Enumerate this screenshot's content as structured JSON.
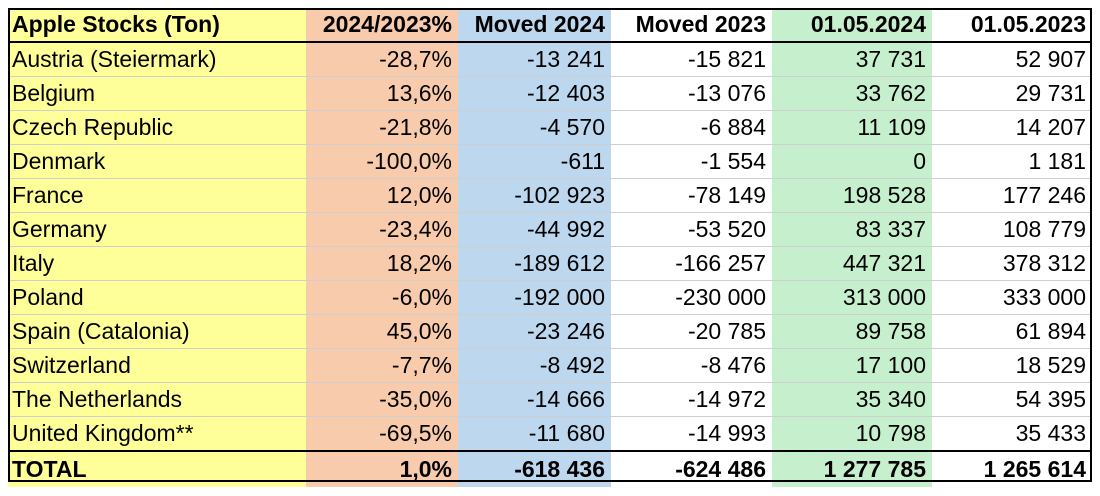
{
  "table": {
    "headers": [
      "Apple Stocks (Ton)",
      "2024/2023%",
      "Moved 2024",
      "Moved 2023",
      "01.05.2024",
      "01.05.2023"
    ],
    "rows": [
      {
        "country": "Austria (Steiermark)",
        "ratio": "-28,7%",
        "moved2024": "-13 241",
        "moved2023": "-15 821",
        "stock2024": "37 731",
        "stock2023": "52 907"
      },
      {
        "country": "Belgium",
        "ratio": "13,6%",
        "moved2024": "-12 403",
        "moved2023": "-13 076",
        "stock2024": "33 762",
        "stock2023": "29 731"
      },
      {
        "country": "Czech Republic",
        "ratio": "-21,8%",
        "moved2024": "-4 570",
        "moved2023": "-6 884",
        "stock2024": "11 109",
        "stock2023": "14 207"
      },
      {
        "country": "Denmark",
        "ratio": "-100,0%",
        "moved2024": "-611",
        "moved2023": "-1 554",
        "stock2024": "0",
        "stock2023": "1 181"
      },
      {
        "country": "France",
        "ratio": "12,0%",
        "moved2024": "-102 923",
        "moved2023": "-78 149",
        "stock2024": "198 528",
        "stock2023": "177 246"
      },
      {
        "country": "Germany",
        "ratio": "-23,4%",
        "moved2024": "-44 992",
        "moved2023": "-53 520",
        "stock2024": "83 337",
        "stock2023": "108 779"
      },
      {
        "country": "Italy",
        "ratio": "18,2%",
        "moved2024": "-189 612",
        "moved2023": "-166 257",
        "stock2024": "447 321",
        "stock2023": "378 312"
      },
      {
        "country": "Poland",
        "ratio": "-6,0%",
        "moved2024": "-192 000",
        "moved2023": "-230 000",
        "stock2024": "313 000",
        "stock2023": "333 000"
      },
      {
        "country": "Spain (Catalonia)",
        "ratio": "45,0%",
        "moved2024": "-23 246",
        "moved2023": "-20 785",
        "stock2024": "89 758",
        "stock2023": "61 894"
      },
      {
        "country": "Switzerland",
        "ratio": "-7,7%",
        "moved2024": "-8 492",
        "moved2023": "-8 476",
        "stock2024": "17 100",
        "stock2023": "18 529"
      },
      {
        "country": "The Netherlands",
        "ratio": "-35,0%",
        "moved2024": "-14 666",
        "moved2023": "-14 972",
        "stock2024": "35 340",
        "stock2023": "54 395"
      },
      {
        "country": "United Kingdom**",
        "ratio": "-69,5%",
        "moved2024": "-11 680",
        "moved2023": "-14 993",
        "stock2024": "10 798",
        "stock2023": "35 433"
      }
    ],
    "total": {
      "country": "TOTAL",
      "ratio": "1,0%",
      "moved2024": "-618 436",
      "moved2023": "-624 486",
      "stock2024": "1 277 785",
      "stock2023": "1 265 614"
    }
  },
  "colors": {
    "country_column": "#ffff99",
    "ratio_column": "#f8cbad",
    "moved2024_column": "#bdd7ee",
    "moved2023_column": "#ffffff",
    "stock2024_column": "#c6efce",
    "stock2023_column": "#ffffff"
  }
}
